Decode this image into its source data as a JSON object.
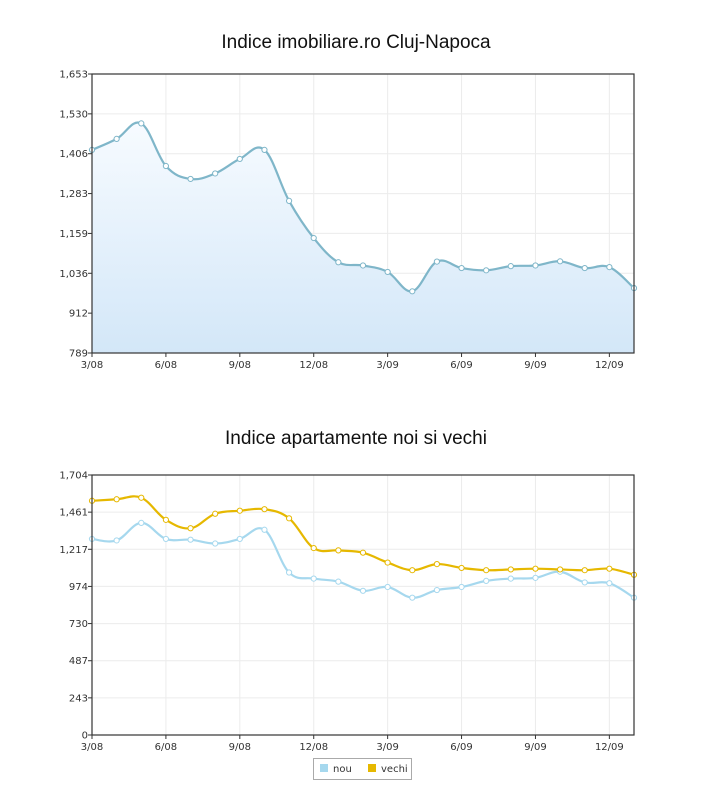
{
  "chart_data": [
    {
      "type": "area",
      "title": "Indice imobiliare.ro Cluj-Napoca",
      "ylim": [
        789,
        1653
      ],
      "y_ticks": [
        "789",
        "912",
        "1,036",
        "1,159",
        "1,283",
        "1,406",
        "1,530",
        "1,653"
      ],
      "x_tick_labels": [
        "3/08",
        "6/08",
        "9/08",
        "12/08",
        "3/09",
        "6/09",
        "9/09",
        "12/09"
      ],
      "x": [
        "3/08",
        "4/08",
        "5/08",
        "6/08",
        "7/08",
        "8/08",
        "9/08",
        "10/08",
        "11/08",
        "12/08",
        "1/09",
        "2/09",
        "3/09",
        "4/09",
        "5/09",
        "6/09",
        "7/09",
        "8/09",
        "9/09",
        "10/09",
        "11/09",
        "12/09",
        "1/10"
      ],
      "series": [
        {
          "values": [
            1418,
            1452,
            1500,
            1368,
            1328,
            1345,
            1390,
            1418,
            1260,
            1145,
            1070,
            1060,
            1040,
            980,
            1072,
            1052,
            1045,
            1058,
            1060,
            1073,
            1052,
            1055,
            990
          ],
          "color": "#7fb6c9"
        }
      ],
      "grid": true
    },
    {
      "type": "line",
      "title": "Indice apartamente noi si vechi",
      "ylim": [
        0,
        1704
      ],
      "y_ticks": [
        "0",
        "243",
        "487",
        "730",
        "974",
        "1,217",
        "1,461",
        "1,704"
      ],
      "x_tick_labels": [
        "3/08",
        "6/08",
        "9/08",
        "12/08",
        "3/09",
        "6/09",
        "9/09",
        "12/09"
      ],
      "x": [
        "3/08",
        "4/08",
        "5/08",
        "6/08",
        "7/08",
        "8/08",
        "9/08",
        "10/08",
        "11/08",
        "12/08",
        "1/09",
        "2/09",
        "3/09",
        "4/09",
        "5/09",
        "6/09",
        "7/09",
        "8/09",
        "9/09",
        "10/09",
        "11/09",
        "12/09",
        "1/10"
      ],
      "series": [
        {
          "name": "nou",
          "color": "#a6d8ee",
          "values": [
            1285,
            1275,
            1390,
            1285,
            1280,
            1255,
            1285,
            1345,
            1065,
            1025,
            1005,
            945,
            970,
            900,
            950,
            970,
            1010,
            1025,
            1030,
            1070,
            1000,
            995,
            900
          ]
        },
        {
          "name": "vechi",
          "color": "#e6b800",
          "values": [
            1535,
            1545,
            1555,
            1410,
            1355,
            1450,
            1470,
            1480,
            1420,
            1225,
            1210,
            1195,
            1130,
            1080,
            1120,
            1095,
            1080,
            1085,
            1090,
            1085,
            1080,
            1090,
            1050
          ]
        }
      ],
      "legend_position": "bottom-center",
      "grid": true
    }
  ]
}
